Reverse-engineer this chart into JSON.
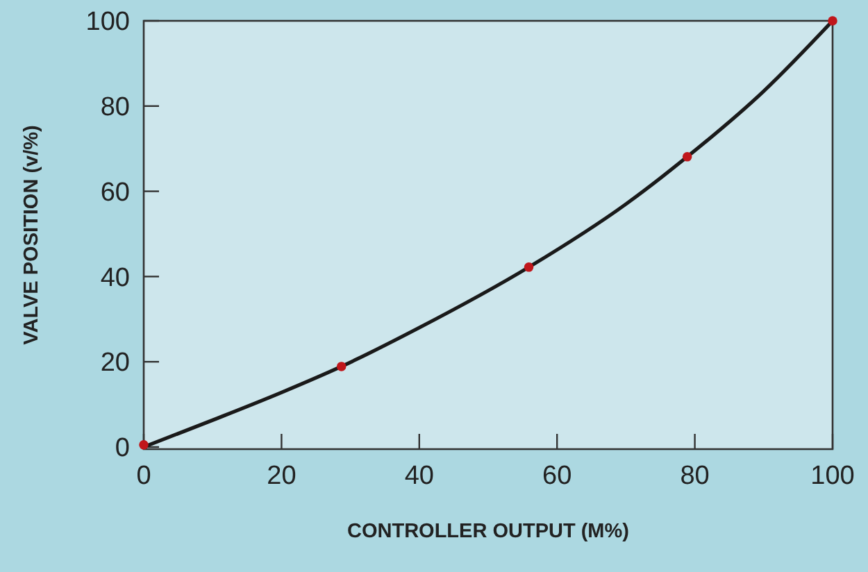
{
  "chart_data": {
    "type": "line",
    "xlabel": "CONTROLLER OUTPUT (M%)",
    "ylabel": "VALVE POSITION (v/%)",
    "xlim": [
      0,
      100
    ],
    "ylim": [
      -0.5,
      100
    ],
    "xticks": [
      0,
      20,
      40,
      60,
      80,
      100
    ],
    "yticks": [
      0,
      20,
      40,
      60,
      80,
      100
    ],
    "grid": false,
    "series": [
      {
        "color": "#1a1a1a",
        "marker": "none",
        "x": [
          0,
          10,
          20,
          28.7,
          40,
          55.9,
          70,
          78.9,
          90,
          100
        ],
        "values": [
          0,
          6.3,
          12.8,
          18.9,
          28,
          42.2,
          57,
          68.1,
          83.5,
          100
        ]
      },
      {
        "type": "scatter",
        "color": "#c0161b",
        "marker": "circle",
        "x": [
          0,
          28.7,
          55.9,
          78.9,
          100
        ],
        "values": [
          0.5,
          18.9,
          42.2,
          68.1,
          100
        ]
      }
    ]
  }
}
